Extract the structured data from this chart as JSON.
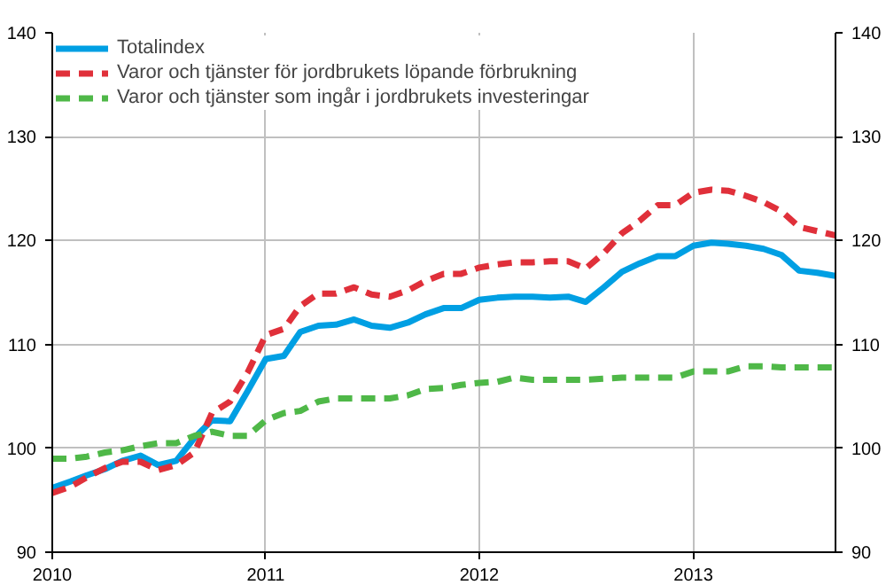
{
  "chart_data": {
    "type": "line",
    "x": [
      "2010-01",
      "2010-02",
      "2010-03",
      "2010-04",
      "2010-05",
      "2010-06",
      "2010-07",
      "2010-08",
      "2010-09",
      "2010-10",
      "2010-11",
      "2010-12",
      "2011-01",
      "2011-02",
      "2011-03",
      "2011-04",
      "2011-05",
      "2011-06",
      "2011-07",
      "2011-08",
      "2011-09",
      "2011-10",
      "2011-11",
      "2011-12",
      "2012-01",
      "2012-02",
      "2012-03",
      "2012-04",
      "2012-05",
      "2012-06",
      "2012-07",
      "2012-08",
      "2012-09",
      "2012-10",
      "2012-11",
      "2012-12",
      "2013-01",
      "2013-02",
      "2013-03",
      "2013-04",
      "2013-05",
      "2013-06",
      "2013-07",
      "2013-08",
      "2013-09"
    ],
    "series": [
      {
        "name": "Totalindex",
        "color": "#009fe3",
        "line_style": "solid",
        "values": [
          96.2,
          96.8,
          97.4,
          98.0,
          98.8,
          99.3,
          98.4,
          98.8,
          101.0,
          102.7,
          102.6,
          105.5,
          108.6,
          108.9,
          111.2,
          111.8,
          111.9,
          112.4,
          111.8,
          111.6,
          112.1,
          112.9,
          113.5,
          113.5,
          114.3,
          114.5,
          114.6,
          114.6,
          114.5,
          114.6,
          114.1,
          115.5,
          117.0,
          117.8,
          118.5,
          118.5,
          119.5,
          119.8,
          119.7,
          119.5,
          119.2,
          118.6,
          117.1,
          116.9,
          116.6
        ]
      },
      {
        "name": "Varor och tjänster för jordbrukets löpande förbrukning",
        "color": "#e0303a",
        "line_style": "dashed",
        "values": [
          95.7,
          96.3,
          97.2,
          98.1,
          98.7,
          98.7,
          97.9,
          98.4,
          99.6,
          103.4,
          104.5,
          107.3,
          110.9,
          111.5,
          113.7,
          114.9,
          114.9,
          115.5,
          114.8,
          114.6,
          115.2,
          116.1,
          116.8,
          116.8,
          117.4,
          117.7,
          117.9,
          117.9,
          118.0,
          118.0,
          117.3,
          118.8,
          120.7,
          121.9,
          123.4,
          123.4,
          124.6,
          124.9,
          124.8,
          124.3,
          123.7,
          122.8,
          121.3,
          120.9,
          120.5
        ]
      },
      {
        "name": "Varor och tjänster som ingår i jordbrukets investeringar",
        "color": "#4fb848",
        "line_style": "dashed",
        "values": [
          99.0,
          99.0,
          99.2,
          99.6,
          99.8,
          100.2,
          100.5,
          100.5,
          101.2,
          101.6,
          101.2,
          101.2,
          102.7,
          103.4,
          103.6,
          104.5,
          104.8,
          104.8,
          104.8,
          104.8,
          105.1,
          105.7,
          105.8,
          106.1,
          106.3,
          106.4,
          106.8,
          106.6,
          106.6,
          106.6,
          106.6,
          106.7,
          106.8,
          106.8,
          106.8,
          106.8,
          107.4,
          107.4,
          107.4,
          107.9,
          107.9,
          107.8,
          107.8,
          107.8,
          107.8
        ]
      }
    ],
    "xlim": [
      "2010-01",
      "2013-09"
    ],
    "xticks": [
      {
        "value": "2010-01",
        "label": "2010"
      },
      {
        "value": "2011-01",
        "label": "2011"
      },
      {
        "value": "2012-01",
        "label": "2012"
      },
      {
        "value": "2013-01",
        "label": "2013"
      }
    ],
    "ylim": [
      90,
      140
    ],
    "yticks": [
      90,
      100,
      110,
      120,
      130,
      140
    ],
    "y2lim": [
      90,
      140
    ],
    "y2ticks": [
      90,
      100,
      110,
      120,
      130,
      140
    ],
    "grid": true,
    "legend": "top left"
  }
}
